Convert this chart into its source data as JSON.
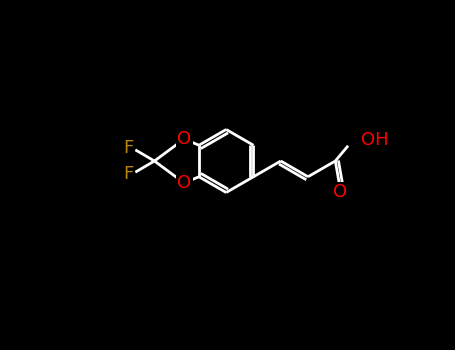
{
  "background_color": "#000000",
  "line_color": "#ffffff",
  "atom_colors": {
    "O": "#ff0000",
    "F": "#b8860b",
    "C": "#ffffff"
  },
  "figsize": [
    4.55,
    3.5
  ],
  "dpi": 100,
  "bond_lw": 2.0,
  "font_size": 13
}
